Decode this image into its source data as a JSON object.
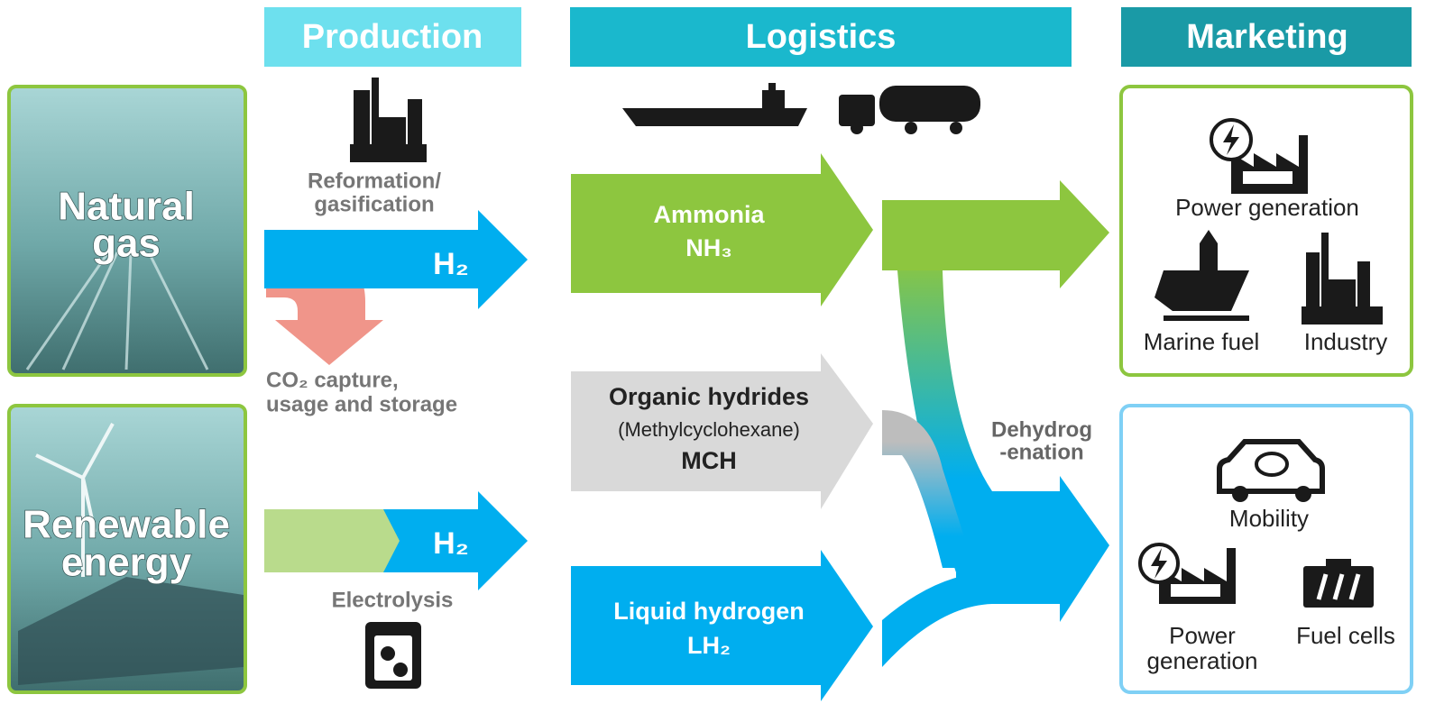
{
  "headers": [
    "Production",
    "Logistics",
    "Marketing"
  ],
  "sources": [
    [
      "Natural",
      "gas"
    ],
    [
      "Renewable",
      "energy"
    ]
  ],
  "production": {
    "reformation": [
      "Reformation/",
      "gasification"
    ],
    "h2_top": "H₂",
    "ccus": [
      "CO₂ capture,",
      "usage and storage"
    ],
    "h2_bottom": "H₂",
    "electrolysis": "Electrolysis"
  },
  "logistics": {
    "ammonia": [
      "Ammonia",
      "NH₃"
    ],
    "mch": [
      "Organic hydrides",
      "(Methylcyclohexane)",
      "MCH"
    ],
    "lh2": [
      "Liquid hydrogen",
      "LH₂"
    ],
    "dehydrogenation": [
      "Dehydrog",
      "-enation"
    ]
  },
  "marketing": {
    "large_scale": [
      "Power generation",
      "Marine fuel",
      "Industry"
    ],
    "small_scale": [
      "Mobility",
      [
        "Power",
        "generation"
      ],
      "Fuel cells"
    ]
  }
}
